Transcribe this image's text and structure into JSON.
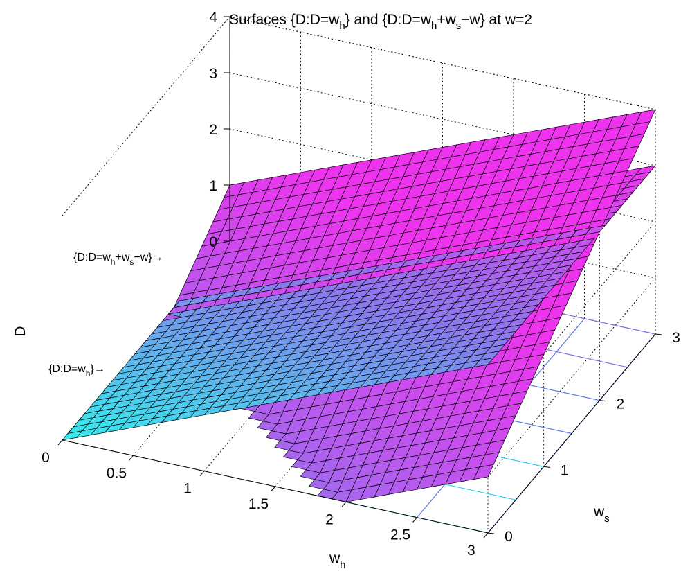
{
  "chart_data": {
    "type": "surface",
    "title": {
      "main": "Surfaces {D:D=w",
      "sub1": "h",
      "mid": "} and {D:D=w",
      "sub2": "h",
      "plus": "+w",
      "sub3": "s",
      "tail": "−w} at w=2"
    },
    "parameters": {
      "w": 2
    },
    "xlabel": {
      "base": "w",
      "sub": "h"
    },
    "ylabel": {
      "base": "w",
      "sub": "s"
    },
    "zlabel": "D",
    "xlim": [
      0,
      3
    ],
    "ylim": [
      0,
      3
    ],
    "zlim": [
      0,
      4
    ],
    "x_ticks": [
      0,
      0.5,
      1,
      1.5,
      2,
      2.5,
      3
    ],
    "x_tick_labels": [
      "0",
      "0.5",
      "1",
      "1.5",
      "2",
      "2.5",
      "3"
    ],
    "y_ticks": [
      0,
      1,
      2,
      3
    ],
    "y_tick_labels": [
      "0",
      "1",
      "2",
      "3"
    ],
    "z_ticks": [
      0,
      1,
      2,
      3,
      4
    ],
    "z_tick_labels": [
      "0",
      "1",
      "2",
      "3",
      "4"
    ],
    "grid": true,
    "mesh_divisions": 30,
    "series": [
      {
        "name": "D=w_h",
        "formula": "D = w_h"
      },
      {
        "name": "D=w_h+w_s-w",
        "formula": "D = w_h + w_s - 2"
      }
    ],
    "annotations": [
      {
        "text": {
          "base": "{D:D=w",
          "sub1": "h",
          "mid": "+w",
          "sub2": "s",
          "tail": "−w}→"
        },
        "target": "D=w_h+w_s-w"
      },
      {
        "text": {
          "base": "{D:D=w",
          "sub1": "h",
          "tail": "}→"
        },
        "target": "D=w_h"
      }
    ],
    "colors": {
      "surface_low": "#33eeee",
      "surface_mid": "#8a7aee",
      "surface_high": "#ee33ee",
      "mesh_line": "#000000",
      "grid_line": "#000000",
      "contour_cyan": "#33ccee",
      "contour_blue": "#5a7ae8",
      "contour_violet": "#8a6ae8"
    }
  }
}
